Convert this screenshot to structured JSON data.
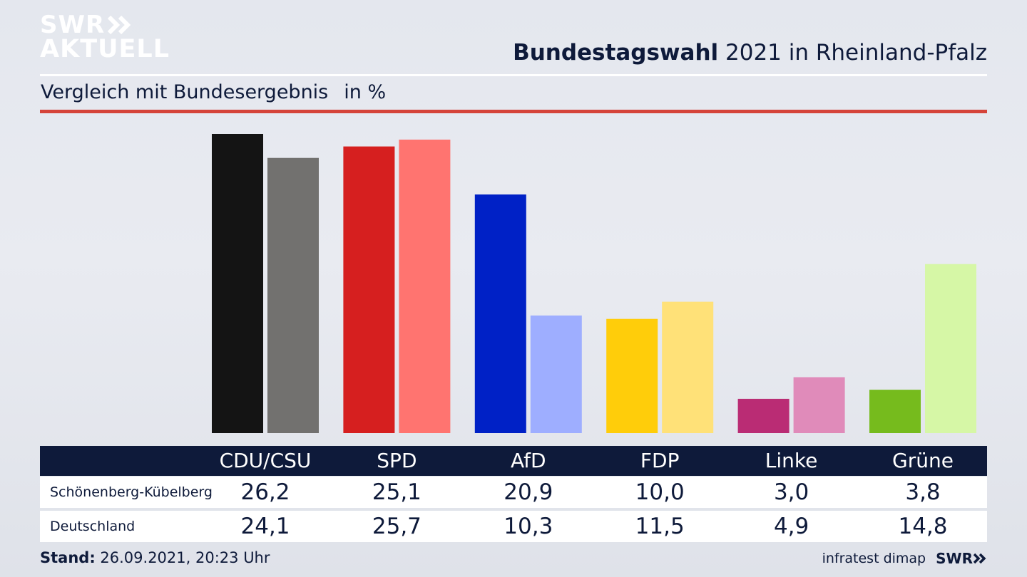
{
  "branding": {
    "logo_line1": "SWR",
    "logo_line2": "AKTUELL",
    "footer_logo": "SWR",
    "source": "infratest dimap"
  },
  "header": {
    "title_bold": "Bundestagswahl",
    "title_rest": " 2021 in Rheinland-Pfalz",
    "subtitle": "Vergleich mit Bundesergebnis",
    "unit": "in %"
  },
  "footer": {
    "stand_label": "Stand:",
    "stand_value": "26.09.2021, 20:23 Uhr"
  },
  "colors": {
    "accent_red": "#d5443a",
    "navy": "#0e1a3a"
  },
  "chart_data": {
    "type": "bar",
    "categories": [
      "CDU/CSU",
      "SPD",
      "AfD",
      "FDP",
      "Linke",
      "Grüne"
    ],
    "series": [
      {
        "name": "Schönenberg-Kübelberg",
        "values": [
          26.2,
          25.1,
          20.9,
          10.0,
          3.0,
          3.8
        ],
        "labels": [
          "26,2",
          "25,1",
          "20,9",
          "10,0",
          "3,0",
          "3,8"
        ],
        "colors": [
          "#141414",
          "#d61f1f",
          "#0021c6",
          "#ffcd0a",
          "#ba2c74",
          "#76bb1d"
        ]
      },
      {
        "name": "Deutschland",
        "values": [
          24.1,
          25.7,
          10.3,
          11.5,
          4.9,
          14.8
        ],
        "labels": [
          "24,1",
          "25,7",
          "10,3",
          "11,5",
          "4,9",
          "14,8"
        ],
        "colors": [
          "#72716f",
          "#ff7470",
          "#9eaeff",
          "#ffe178",
          "#e08bba",
          "#d6f7a6"
        ]
      }
    ],
    "ylim": [
      0,
      26.2
    ],
    "grid": false,
    "legend": "table-below"
  }
}
